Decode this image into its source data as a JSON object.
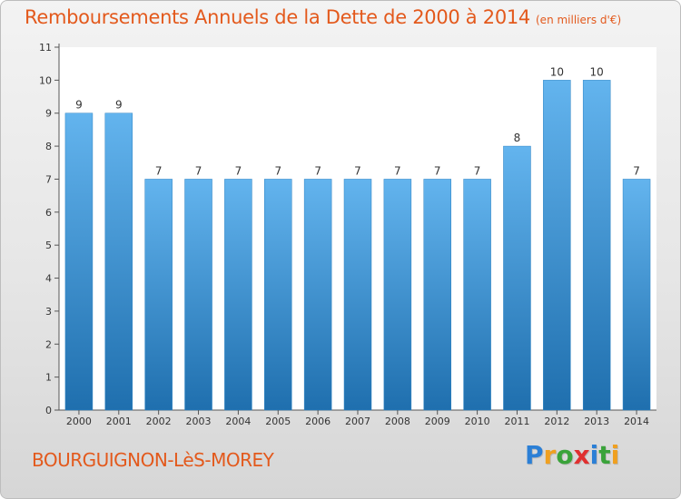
{
  "title": "Remboursements Annuels de la Dette de 2000 à 2014",
  "subtitle": "(en milliers d'€)",
  "commune": "BOURGUIGNON-LèS-MOREY",
  "logo": {
    "letters": [
      "P",
      "r",
      "o",
      "x",
      "i",
      "t",
      "i"
    ],
    "colors": [
      "#2b7fd6",
      "#f0a020",
      "#3aa33a",
      "#e03030",
      "#2b7fd6",
      "#3aa33a",
      "#f0a020"
    ]
  },
  "colors": {
    "title": "#e3591c",
    "bar_top": "#63b4ee",
    "bar_bottom": "#1f6fae",
    "axis": "#555555",
    "plot_bg": "#ffffff"
  },
  "chart_data": {
    "type": "bar",
    "categories": [
      "2000",
      "2001",
      "2002",
      "2003",
      "2004",
      "2005",
      "2006",
      "2007",
      "2008",
      "2009",
      "2010",
      "2011",
      "2012",
      "2013",
      "2014"
    ],
    "values": [
      9,
      9,
      7,
      7,
      7,
      7,
      7,
      7,
      7,
      7,
      7,
      8,
      10,
      10,
      7
    ],
    "data_labels": [
      "9",
      "9",
      "7",
      "7",
      "7",
      "7",
      "7",
      "7",
      "7",
      "7",
      "7",
      "8",
      "10",
      "10",
      "7"
    ],
    "yticks": [
      0,
      1,
      2,
      3,
      4,
      5,
      6,
      7,
      8,
      9,
      10,
      11
    ],
    "ytick_labels": [
      "0",
      "1",
      "2",
      "3",
      "4",
      "5",
      "6",
      "7",
      "8",
      "9",
      "10",
      "11"
    ],
    "ylim": [
      0,
      11
    ],
    "xlabel": "",
    "ylabel": "",
    "grid": false,
    "legend": false
  }
}
